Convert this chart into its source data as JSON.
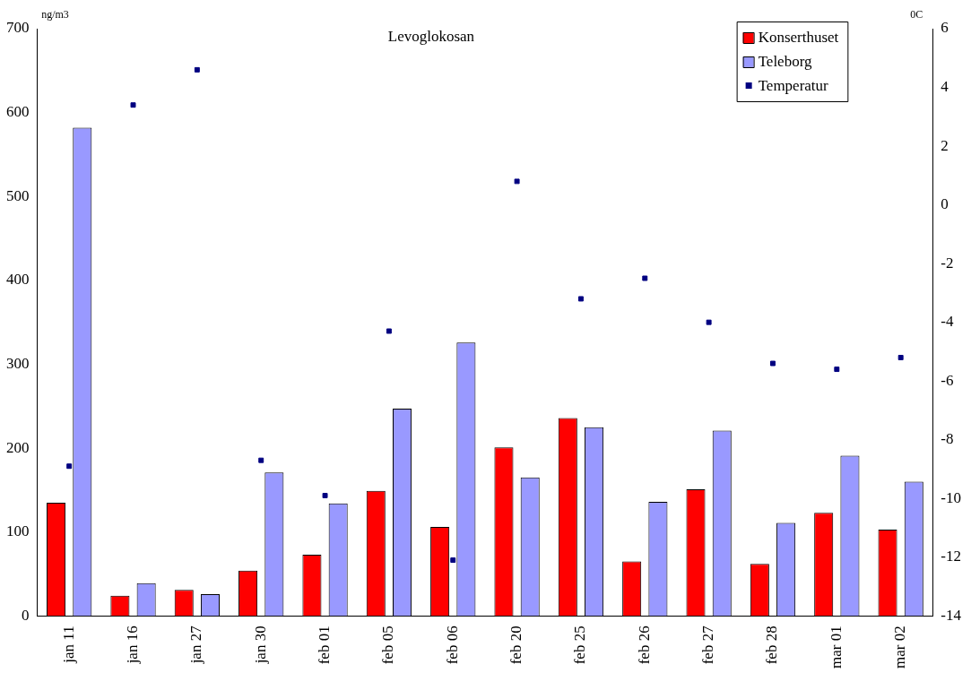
{
  "chart_data": {
    "type": "bar",
    "title": "Levoglokosan",
    "ylabel": "ng/m3",
    "y2label": "0C",
    "categories": [
      "jan 11",
      "jan 16",
      "jan 27",
      "jan 30",
      "feb 01",
      "feb 05",
      "feb 06",
      "feb 20",
      "feb 25",
      "feb 26",
      "feb 27",
      "feb 28",
      "mar 01",
      "mar 02"
    ],
    "series": [
      {
        "name": "Konserthuset",
        "color": "#ff0000",
        "values": [
          135,
          24,
          31,
          54,
          73,
          149,
          106,
          201,
          236,
          65,
          151,
          62,
          123,
          103
        ]
      },
      {
        "name": "Teleborg",
        "color": "#9999ff",
        "values": [
          582,
          39,
          26,
          171,
          134,
          247,
          326,
          165,
          225,
          136,
          221,
          111,
          191,
          160
        ]
      },
      {
        "name": "Temperatur",
        "type": "scatter",
        "axis": "y2",
        "color": "#000080",
        "marker": "square",
        "x": [
          "jan 11",
          "jan 16",
          "jan 27",
          "jan 30",
          "feb 01",
          "feb 05",
          "feb 06",
          "feb 20",
          "feb 25",
          "feb 26",
          "feb 27",
          "feb 28",
          "mar 01",
          "mar 02"
        ],
        "values": [
          -8.9,
          3.4,
          4.6,
          -8.7,
          -9.9,
          -4.3,
          -12.1,
          0.8,
          -3.2,
          -2.5,
          -4.0,
          -5.4,
          -5.6,
          -5.2
        ]
      }
    ],
    "ylim": [
      0,
      700
    ],
    "yticks": [
      0,
      100,
      200,
      300,
      400,
      500,
      600,
      700
    ],
    "y2lim": [
      -14,
      6
    ],
    "y2ticks": [
      -14,
      -12,
      -10,
      -8,
      -6,
      -4,
      -2,
      0,
      2,
      4,
      6
    ],
    "grid": false,
    "legend": "top right"
  }
}
